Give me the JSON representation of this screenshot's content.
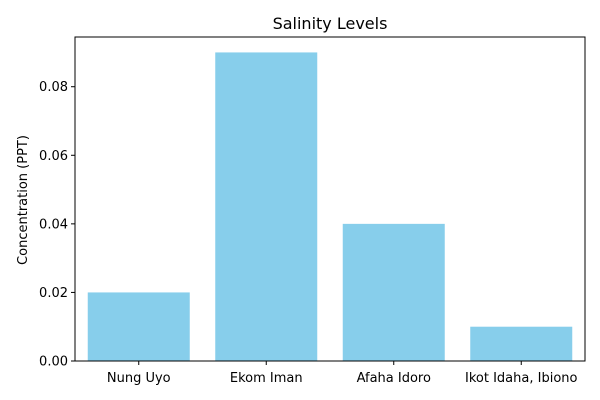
{
  "chart_data": {
    "type": "bar",
    "title": "Salinity Levels",
    "xlabel": "",
    "ylabel": "Concentration (PPT)",
    "categories": [
      "Nung Uyo",
      "Ekom Iman",
      "Afaha Idoro",
      "Ikot Idaha, Ibiono"
    ],
    "values": [
      0.02,
      0.09,
      0.04,
      0.01
    ],
    "ylim": [
      0,
      0.0945
    ],
    "yticks": [
      0.0,
      0.02,
      0.04,
      0.06,
      0.08
    ],
    "ytick_labels": [
      "0.00",
      "0.02",
      "0.04",
      "0.06",
      "0.08"
    ],
    "bar_color": "#87ceeb",
    "grid": false
  }
}
